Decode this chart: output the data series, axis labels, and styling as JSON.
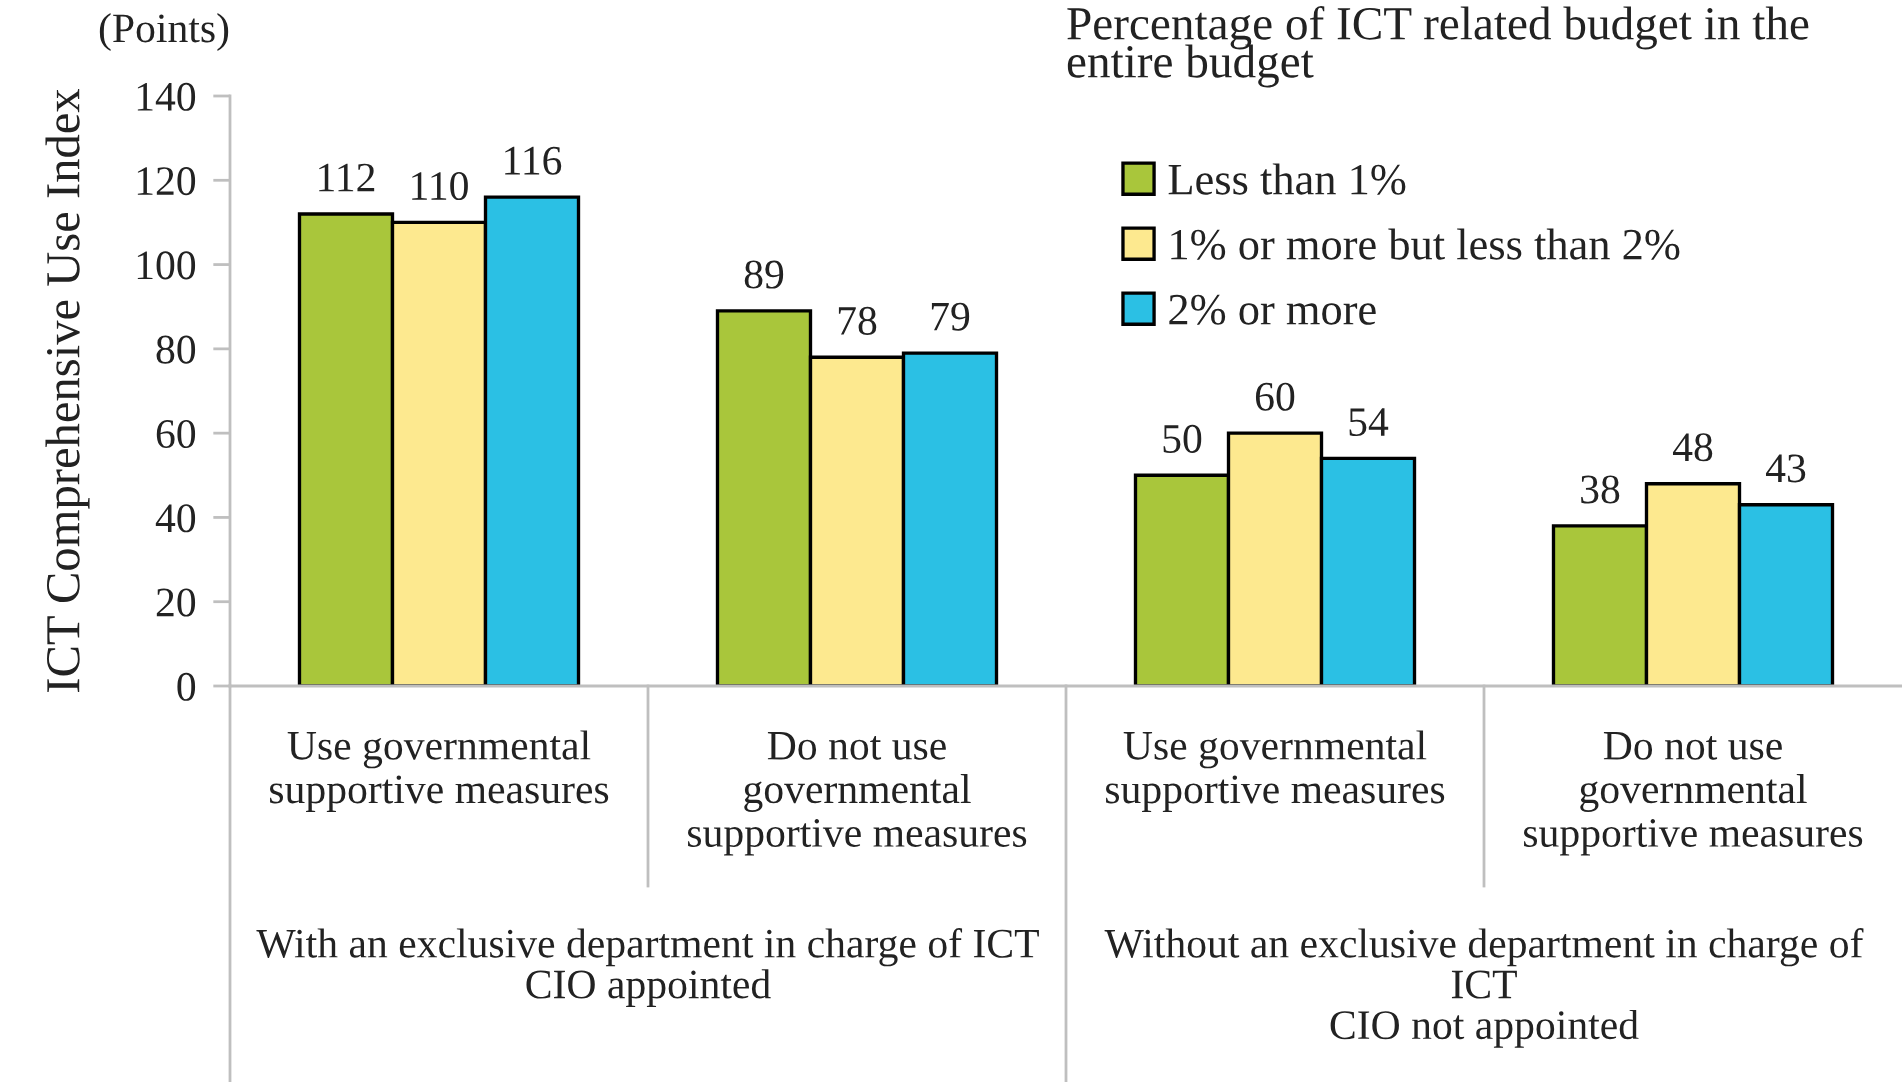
{
  "chart_data": {
    "type": "bar",
    "ylabel": "ICT Comprehensive Use Index",
    "legend_title": "Percentage of ICT related budget in the\nentire budget",
    "categories": [
      "Use governmental\nsupportive measures",
      "Do not use\ngovernmental\nsupportive measures",
      "Use governmental\nsupportive measures",
      "Do not use\ngovernmental\nsupportive measures"
    ],
    "series": [
      {
        "name": "Less than 1%",
        "color": "#a9c63b",
        "values": [
          112,
          89,
          50,
          38
        ]
      },
      {
        "name": "1% or more but less than 2%",
        "color": "#fde98f",
        "values": [
          110,
          78,
          60,
          48
        ]
      },
      {
        "name": "2% or more",
        "color": "#2bc0e4",
        "values": [
          116,
          79,
          54,
          43
        ]
      }
    ],
    "ylim": [
      0,
      140
    ],
    "yticks": [
      0,
      20,
      40,
      60,
      80,
      100,
      120,
      140
    ],
    "grid": false,
    "legend": "top right",
    "data_labels": true,
    "annotations": [
      "(Points)",
      "With an exclusive department in charge of ICT\nCIO appointed",
      "Without an exclusive department in charge of\nICT\nCIO not appointed"
    ]
  }
}
